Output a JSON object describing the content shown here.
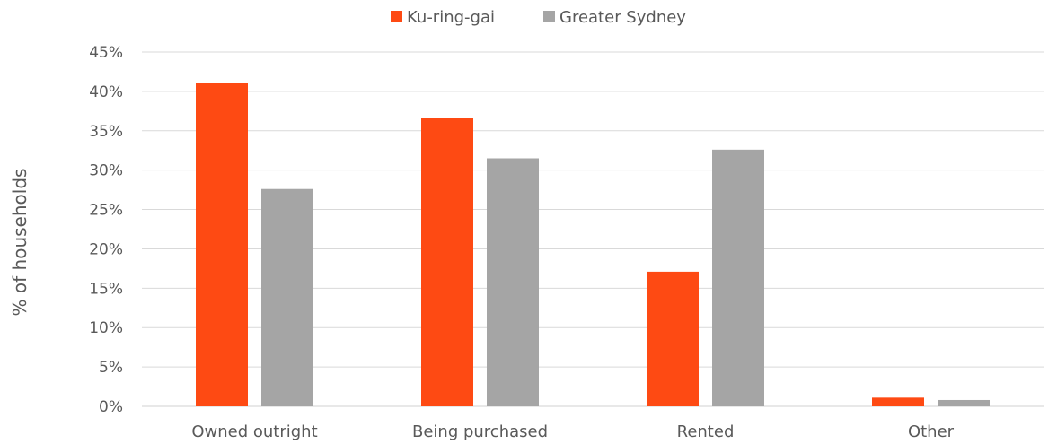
{
  "chart_data": {
    "type": "bar",
    "title": "",
    "xlabel": "",
    "ylabel": "% of households",
    "categories": [
      "Owned outright",
      "Being purchased",
      "Rented",
      "Other"
    ],
    "series": [
      {
        "name": "Ku-ring-gai",
        "color": "#fe4a13",
        "values": [
          41.1,
          36.6,
          17.1,
          1.1
        ]
      },
      {
        "name": "Greater Sydney",
        "color": "#a5a5a5",
        "values": [
          27.6,
          31.5,
          32.6,
          0.8
        ]
      }
    ],
    "ylim": [
      0,
      45
    ],
    "yticks": [
      0,
      5,
      10,
      15,
      20,
      25,
      30,
      35,
      40,
      45
    ],
    "ytick_labels": [
      "0%",
      "5%",
      "10%",
      "15%",
      "20%",
      "25%",
      "30%",
      "35%",
      "40%",
      "45%"
    ],
    "grid": true,
    "legend_position": "top-center"
  }
}
